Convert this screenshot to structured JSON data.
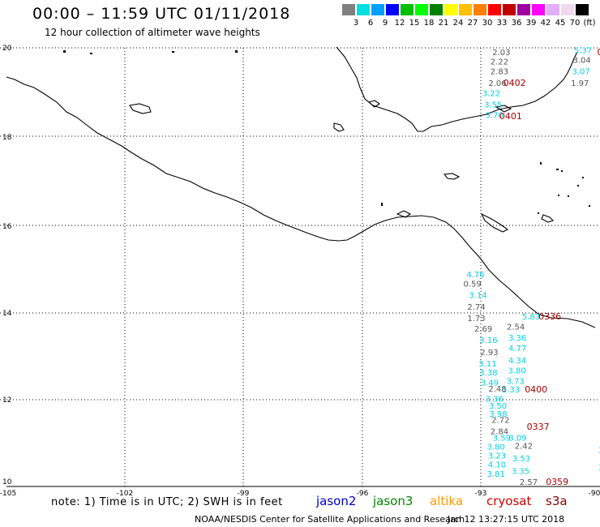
{
  "header": {
    "title": "00:00 – 11:59 UTC 01/11/2018",
    "subtitle": "12 hour collection of altimeter wave heights"
  },
  "legend": {
    "colors": [
      "#808080",
      "#00e0e0",
      "#00a0ff",
      "#0000ff",
      "#00c000",
      "#00ff00",
      "#008000",
      "#ffff00",
      "#ffc000",
      "#ff8000",
      "#ff0000",
      "#c00000",
      "#a000a0",
      "#ff00ff",
      "#e0b0ff",
      "#f0d8f0",
      "#000000"
    ],
    "labels": [
      "3",
      "6",
      "9",
      "12",
      "15",
      "18",
      "21",
      "24",
      "27",
      "30",
      "33",
      "36",
      "39",
      "42",
      "45",
      "70",
      "(ft)"
    ]
  },
  "axes": {
    "lat_labels": [
      "20",
      "18",
      "16",
      "14",
      "12",
      "10"
    ],
    "lon_labels": [
      "-105",
      "-102",
      "-99",
      "-96",
      "-93",
      "-90"
    ]
  },
  "footer": {
    "note": "note: 1) Time is in UTC; 2) SWH is in feet",
    "sats": [
      {
        "name": "jason2",
        "color": "#0000cc"
      },
      {
        "name": "jason3",
        "color": "#008800"
      },
      {
        "name": "altika",
        "color": "#ff9900"
      },
      {
        "name": "cryosat",
        "color": "#cc0000"
      },
      {
        "name": "s3a",
        "color": "#880000"
      }
    ],
    "credit": "NOAA/NESDIS Center for Satellite Applications and Research",
    "timestamp": "Jan 12 13:27:15 UTC 2018"
  },
  "observations": {
    "gray": [
      {
        "v": "2.03",
        "lon": -92.61,
        "lat": 19.83
      },
      {
        "v": "2.22",
        "lon": -92.66,
        "lat": 19.62
      },
      {
        "v": "2.83",
        "lon": -92.66,
        "lat": 19.4
      },
      {
        "v": "2.06",
        "lon": -92.71,
        "lat": 19.13
      },
      {
        "v": "3.04",
        "lon": -90.55,
        "lat": 19.66
      },
      {
        "v": "1.97",
        "lon": -90.6,
        "lat": 19.13
      },
      {
        "v": "0.59",
        "lon": -93.35,
        "lat": 14.56
      },
      {
        "v": "2.74",
        "lon": -93.25,
        "lat": 14.03
      },
      {
        "v": "1.73",
        "lon": -93.25,
        "lat": 13.77
      },
      {
        "v": "2.54",
        "lon": -92.24,
        "lat": 13.58
      },
      {
        "v": "2.69",
        "lon": -93.07,
        "lat": 13.53
      },
      {
        "v": "2.93",
        "lon": -92.92,
        "lat": 12.99
      },
      {
        "v": "2.48",
        "lon": -92.71,
        "lat": 12.16
      },
      {
        "v": "2.72",
        "lon": -92.63,
        "lat": 11.45
      },
      {
        "v": "2.84",
        "lon": -92.66,
        "lat": 11.19
      },
      {
        "v": "2.42",
        "lon": -92.04,
        "lat": 10.86
      },
      {
        "v": "2.57",
        "lon": -91.91,
        "lat": 10.04
      }
    ],
    "cyan": [
      {
        "v": "5.37",
        "lon": -90.52,
        "lat": 19.88
      },
      {
        "v": "3.07",
        "lon": -90.57,
        "lat": 19.4
      },
      {
        "v": "3.22",
        "lon": -92.87,
        "lat": 18.9
      },
      {
        "v": "3.55",
        "lon": -92.82,
        "lat": 18.64
      },
      {
        "v": "3.70",
        "lon": -92.79,
        "lat": 18.4
      },
      {
        "v": "4.76",
        "lon": -93.27,
        "lat": 14.77
      },
      {
        "v": "3.14",
        "lon": -93.21,
        "lat": 14.3
      },
      {
        "v": "5.83",
        "lon": -91.85,
        "lat": 13.81
      },
      {
        "v": "3.36",
        "lon": -92.2,
        "lat": 13.33
      },
      {
        "v": "3.16",
        "lon": -92.94,
        "lat": 13.27
      },
      {
        "v": "4.77",
        "lon": -92.2,
        "lat": 13.09
      },
      {
        "v": "4.34",
        "lon": -92.2,
        "lat": 12.81
      },
      {
        "v": "3.11",
        "lon": -92.96,
        "lat": 12.74
      },
      {
        "v": "3.80",
        "lon": -92.21,
        "lat": 12.58
      },
      {
        "v": "3.38",
        "lon": -92.94,
        "lat": 12.53
      },
      {
        "v": "3.73",
        "lon": -92.25,
        "lat": 12.34
      },
      {
        "v": "3.49",
        "lon": -92.91,
        "lat": 12.3
      },
      {
        "v": "3.33",
        "lon": -92.37,
        "lat": 12.14
      },
      {
        "v": "3.36",
        "lon": -92.79,
        "lat": 11.93
      },
      {
        "v": "3.50",
        "lon": -92.7,
        "lat": 11.77
      },
      {
        "v": "3.98",
        "lon": -92.69,
        "lat": 11.59
      },
      {
        "v": "3.59",
        "lon": -92.6,
        "lat": 11.04
      },
      {
        "v": "3.09",
        "lon": -92.19,
        "lat": 11.04
      },
      {
        "v": "3.80",
        "lon": -92.75,
        "lat": 10.84
      },
      {
        "v": "3.23",
        "lon": -92.72,
        "lat": 10.64
      },
      {
        "v": "3.53",
        "lon": -92.1,
        "lat": 10.57
      },
      {
        "v": "4.10",
        "lon": -92.72,
        "lat": 10.43
      },
      {
        "v": "3.35",
        "lon": -92.12,
        "lat": 10.29
      },
      {
        "v": "3.81",
        "lon": -92.75,
        "lat": 10.22
      },
      {
        "v": "3",
        "lon": -89.9,
        "lat": 10.77
      },
      {
        "v": "3",
        "lon": -89.9,
        "lat": 10.37
      }
    ],
    "times": [
      {
        "v": "0402",
        "lon": -92.33,
        "lat": 19.13
      },
      {
        "v": "0401",
        "lon": -92.43,
        "lat": 18.37
      },
      {
        "v": "0336",
        "lon": -91.43,
        "lat": 13.81
      },
      {
        "v": "0400",
        "lon": -91.78,
        "lat": 12.14
      },
      {
        "v": "0337",
        "lon": -91.73,
        "lat": 11.29
      },
      {
        "v": "0359",
        "lon": -91.24,
        "lat": 10.04
      },
      {
        "v": "0",
        "lon": -89.93,
        "lat": 19.83
      }
    ]
  }
}
